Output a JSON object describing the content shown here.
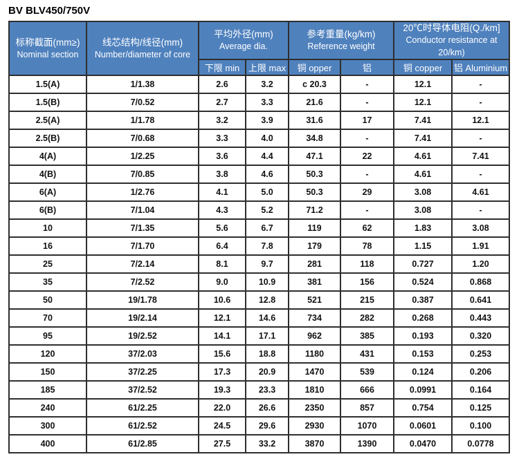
{
  "page": {
    "title": "BV BLV450/750V"
  },
  "colors": {
    "header_bg": "#4f81bd",
    "header_text": "#ffffff",
    "grid_border": "#2e2e2e",
    "cell_text": "#111111",
    "background": "#ffffff"
  },
  "table": {
    "groups": {
      "nominal": {
        "zh": "标称截面(mm≥)",
        "en": "Nominal section"
      },
      "core": {
        "zh": "线芯结构/线径(mm)",
        "en": "Number/diameter of core"
      },
      "avg_dia": {
        "zh": "平均外径(mm)",
        "en": "Average dia."
      },
      "ref_weight": {
        "zh": "参考重量(kg/km)",
        "en": "Reference weight"
      },
      "resistance": {
        "zh": "20℃时导体电阻(Q./km]",
        "en": "Conductor resistance at 20/km)"
      }
    },
    "subheaders": [
      "下限 min",
      "上限 max",
      "铜 opper",
      "铝",
      "铜 copper",
      "铝 Aluminium"
    ],
    "rows": [
      [
        "1.5(A)",
        "1/1.38",
        "2.6",
        "3.2",
        "c 20.3",
        "-",
        "12.1",
        "-"
      ],
      [
        "1.5(B)",
        "7/0.52",
        "2.7",
        "3.3",
        "21.6",
        "-",
        "12.1",
        "-"
      ],
      [
        "2.5(A)",
        "1/1.78",
        "3.2",
        "3.9",
        "31.6",
        "17",
        "7.41",
        "12.1"
      ],
      [
        "2.5(B)",
        "7/0.68",
        "3.3",
        "4.0",
        "34.8",
        "-",
        "7.41",
        "-"
      ],
      [
        "4(A)",
        "1/2.25",
        "3.6",
        "4.4",
        "47.1",
        "22",
        "4.61",
        "7.41"
      ],
      [
        "4(B)",
        "7/0.85",
        "3.8",
        "4.6",
        "50.3",
        "-",
        "4.61",
        "-"
      ],
      [
        "6(A)",
        "1/2.76",
        "4.1",
        "5.0",
        "50.3",
        "29",
        "3.08",
        "4.61"
      ],
      [
        "6(B)",
        "7/1.04",
        "4.3",
        "5.2",
        "71.2",
        "-",
        "3.08",
        "-"
      ],
      [
        "10",
        "7/1.35",
        "5.6",
        "6.7",
        "119",
        "62",
        "1.83",
        "3.08"
      ],
      [
        "16",
        "7/1.70",
        "6.4",
        "7.8",
        "179",
        "78",
        "1.15",
        "1.91"
      ],
      [
        "25",
        "7/2.14",
        "8.1",
        "9.7",
        "281",
        "118",
        "0.727",
        "1.20"
      ],
      [
        "35",
        "7/2.52",
        "9.0",
        "10.9",
        "381",
        "156",
        "0.524",
        "0.868"
      ],
      [
        "50",
        "19/1.78",
        "10.6",
        "12.8",
        "521",
        "215",
        "0.387",
        "0.641"
      ],
      [
        "70",
        "19/2.14",
        "12.1",
        "14.6",
        "734",
        "282",
        "0.268",
        "0.443"
      ],
      [
        "95",
        "19/2.52",
        "14.1",
        "17.1",
        "962",
        "385",
        "0.193",
        "0.320"
      ],
      [
        "120",
        "37/2.03",
        "15.6",
        "18.8",
        "1180",
        "431",
        "0.153",
        "0.253"
      ],
      [
        "150",
        "37/2.25",
        "17.3",
        "20.9",
        "1470",
        "539",
        "0.124",
        "0.206"
      ],
      [
        "185",
        "37/2.52",
        "19.3",
        "23.3",
        "1810",
        "666",
        "0.0991",
        "0.164"
      ],
      [
        "240",
        "61/2.25",
        "22.0",
        "26.6",
        "2350",
        "857",
        "0.754",
        "0.125"
      ],
      [
        "300",
        "61/2.52",
        "24.5",
        "29.6",
        "2930",
        "1070",
        "0.0601",
        "0.100"
      ],
      [
        "400",
        "61/2.85",
        "27.5",
        "33.2",
        "3870",
        "1390",
        "0.0470",
        "0.0778"
      ]
    ]
  }
}
